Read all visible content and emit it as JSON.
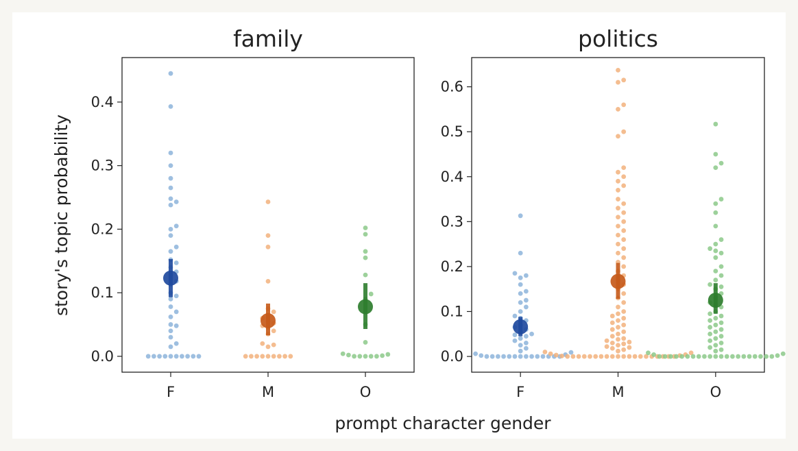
{
  "chart_data": {
    "type": "scatter",
    "xlabel": "prompt character gender",
    "ylabel": "story's topic probability",
    "categories": [
      "F",
      "M",
      "O"
    ],
    "colors": {
      "F": {
        "point": "#8db4da",
        "mean": "#1f4a9e"
      },
      "M": {
        "point": "#f2b27c",
        "mean": "#c55a1a"
      },
      "O": {
        "point": "#8cc98a",
        "mean": "#2e7d2e"
      }
    },
    "panels": [
      {
        "title": "family",
        "ylim": [
          -0.025,
          0.47
        ],
        "yticks": [
          "0.0",
          "0.1",
          "0.2",
          "0.3",
          "0.4"
        ],
        "groups": [
          {
            "category": "F",
            "values": [
              0.445,
              0.393,
              0.32,
              0.3,
              0.28,
              0.265,
              0.248,
              0.243,
              0.238,
              0.205,
              0.2,
              0.19,
              0.172,
              0.165,
              0.152,
              0.147,
              0.14,
              0.133,
              0.128,
              0.118,
              0.113,
              0.1,
              0.095,
              0.09,
              0.078,
              0.07,
              0.062,
              0.05,
              0.048,
              0.04,
              0.03,
              0.02,
              0.015,
              0,
              0,
              0,
              0,
              0,
              0,
              0,
              0,
              0,
              0
            ],
            "mean": 0.123,
            "ci": [
              0.093,
              0.153
            ]
          },
          {
            "category": "M",
            "values": [
              0.243,
              0.19,
              0.172,
              0.118,
              0.075,
              0.07,
              0.065,
              0.06,
              0.055,
              0.052,
              0.048,
              0.045,
              0.04,
              0.035,
              0.02,
              0.018,
              0.015,
              0,
              0,
              0,
              0,
              0,
              0,
              0,
              0,
              0
            ],
            "mean": 0.056,
            "ci": [
              0.033,
              0.083
            ]
          },
          {
            "category": "O",
            "values": [
              0.202,
              0.192,
              0.165,
              0.155,
              0.128,
              0.098,
              0.09,
              0.05,
              0.022,
              0.004,
              0.003,
              0.002,
              0.001,
              0,
              0,
              0,
              0,
              0
            ],
            "mean": 0.078,
            "ci": [
              0.043,
              0.115
            ]
          }
        ]
      },
      {
        "title": "politics",
        "ylim": [
          -0.035,
          0.665
        ],
        "yticks": [
          "0.0",
          "0.1",
          "0.2",
          "0.3",
          "0.4",
          "0.5",
          "0.6"
        ],
        "groups": [
          {
            "category": "F",
            "values": [
              0.313,
              0.23,
              0.185,
              0.18,
              0.175,
              0.16,
              0.145,
              0.14,
              0.125,
              0.12,
              0.11,
              0.1,
              0.09,
              0.085,
              0.08,
              0.07,
              0.065,
              0.06,
              0.055,
              0.05,
              0.048,
              0.045,
              0.04,
              0.035,
              0.03,
              0.025,
              0.018,
              0.012,
              0.009,
              0.006,
              0.004,
              0.002,
              0,
              0,
              0,
              0,
              0,
              0,
              0,
              0,
              0,
              0,
              0,
              0,
              0,
              0
            ],
            "mean": 0.066,
            "ci": [
              0.045,
              0.088
            ]
          },
          {
            "category": "M",
            "values": [
              0.637,
              0.615,
              0.61,
              0.56,
              0.55,
              0.5,
              0.49,
              0.42,
              0.41,
              0.4,
              0.39,
              0.38,
              0.37,
              0.35,
              0.34,
              0.33,
              0.32,
              0.31,
              0.3,
              0.29,
              0.28,
              0.27,
              0.26,
              0.25,
              0.24,
              0.23,
              0.22,
              0.21,
              0.2,
              0.19,
              0.18,
              0.17,
              0.16,
              0.15,
              0.14,
              0.13,
              0.12,
              0.11,
              0.1,
              0.095,
              0.09,
              0.085,
              0.08,
              0.075,
              0.07,
              0.065,
              0.06,
              0.055,
              0.05,
              0.045,
              0.04,
              0.038,
              0.035,
              0.032,
              0.03,
              0.028,
              0.025,
              0.022,
              0.02,
              0.018,
              0.015,
              0.012,
              0.01,
              0.008,
              0.006,
              0.004,
              0.003,
              0.002,
              0.001,
              0,
              0,
              0,
              0,
              0,
              0,
              0,
              0,
              0,
              0,
              0,
              0,
              0,
              0,
              0,
              0,
              0,
              0,
              0,
              0
            ],
            "mean": 0.167,
            "ci": [
              0.128,
              0.208
            ]
          },
          {
            "category": "O",
            "values": [
              0.517,
              0.45,
              0.43,
              0.42,
              0.35,
              0.34,
              0.32,
              0.29,
              0.26,
              0.25,
              0.24,
              0.235,
              0.23,
              0.22,
              0.2,
              0.19,
              0.18,
              0.17,
              0.16,
              0.155,
              0.15,
              0.14,
              0.13,
              0.12,
              0.115,
              0.11,
              0.1,
              0.095,
              0.09,
              0.085,
              0.08,
              0.075,
              0.07,
              0.065,
              0.06,
              0.055,
              0.05,
              0.045,
              0.04,
              0.035,
              0.03,
              0.025,
              0.02,
              0.015,
              0.012,
              0.01,
              0.008,
              0.006,
              0.004,
              0.002,
              0,
              0,
              0,
              0,
              0,
              0,
              0,
              0,
              0,
              0,
              0,
              0,
              0,
              0,
              0,
              0,
              0,
              0,
              0,
              0,
              0
            ],
            "mean": 0.125,
            "ci": [
              0.095,
              0.163
            ]
          }
        ]
      }
    ]
  }
}
